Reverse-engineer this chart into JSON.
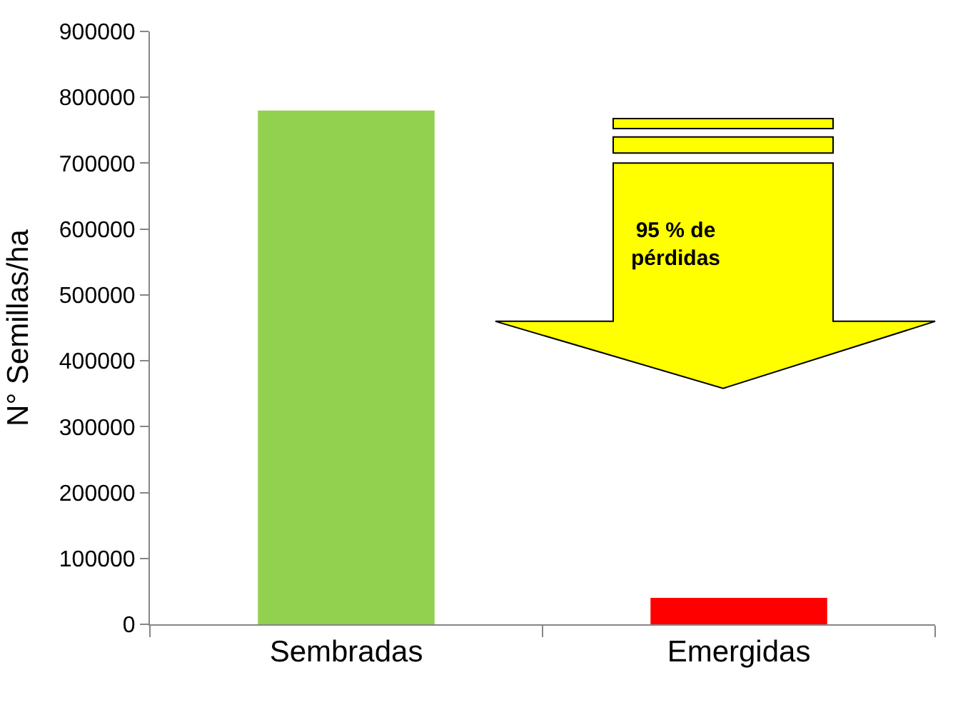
{
  "chart_data": {
    "type": "bar",
    "ylabel": "N° Semillas/ha",
    "categories": [
      "Sembradas",
      "Emergidas"
    ],
    "values": [
      780000,
      40000
    ],
    "colors": [
      "#92d050",
      "#ff0000"
    ],
    "ylim": [
      0,
      900000
    ],
    "yticks": [
      0,
      100000,
      200000,
      300000,
      400000,
      500000,
      600000,
      700000,
      800000,
      900000
    ],
    "annotations": [
      "95 % de pérdidas"
    ]
  }
}
